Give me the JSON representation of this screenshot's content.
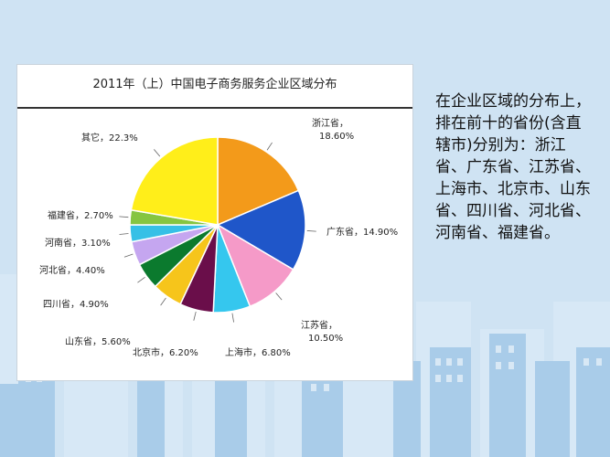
{
  "colors": {
    "background": "#cfe3f3",
    "skyline_light": "#d7e8f6",
    "skyline_dark": "#a9cce9"
  },
  "description_text": "在企业区域的分布上，排在前十的省份(含直辖市)分别为：浙江省、广东省、江苏省、上海市、北京市、山东省、四川省、河北省、河南省、福建省。",
  "chart_data": {
    "type": "pie",
    "title": "2011年（上）中国电子商务服务企业区域分布",
    "slices": [
      {
        "name": "浙江省",
        "value": 18.6,
        "label": "浙江省，\n18.60%",
        "color": "#f39a1a"
      },
      {
        "name": "广东省",
        "value": 14.9,
        "label": "广东省，14.90%",
        "color": "#1f56c9"
      },
      {
        "name": "江苏省",
        "value": 10.5,
        "label": "江苏省，\n10.50%",
        "color": "#f59ac8"
      },
      {
        "name": "上海市",
        "value": 6.8,
        "label": "上海市，6.80%",
        "color": "#35c7ee"
      },
      {
        "name": "北京市",
        "value": 6.2,
        "label": "北京市，6.20%",
        "color": "#6a0e4a"
      },
      {
        "name": "山东省",
        "value": 5.6,
        "label": "山东省，5.60%",
        "color": "#f6c51b"
      },
      {
        "name": "四川省",
        "value": 4.9,
        "label": "四川省，4.90%",
        "color": "#0b7a2e"
      },
      {
        "name": "河北省",
        "value": 4.4,
        "label": "河北省，4.40%",
        "color": "#c5a6f0"
      },
      {
        "name": "河南省",
        "value": 3.1,
        "label": "河南省，3.10%",
        "color": "#36c0e6"
      },
      {
        "name": "福建省",
        "value": 2.7,
        "label": "福建省，2.70%",
        "color": "#86c541"
      },
      {
        "name": "其它",
        "value": 22.3,
        "label": "其它，22.3%",
        "color": "#ffee1a"
      }
    ]
  }
}
